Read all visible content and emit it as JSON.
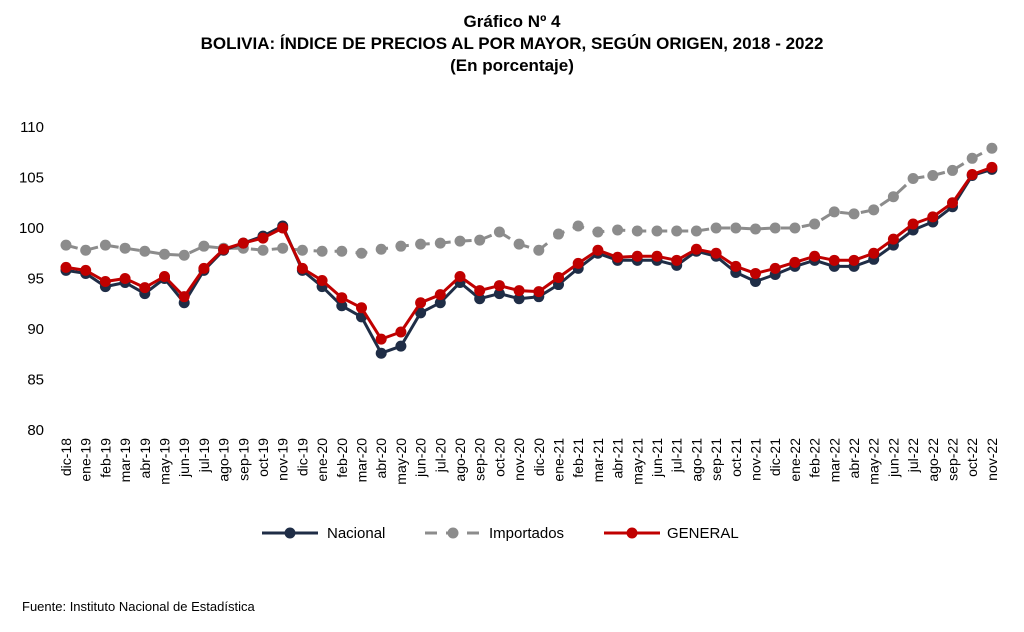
{
  "header": {
    "line1": "Gráfico Nº 4",
    "line2": "BOLIVIA: ÍNDICE DE PRECIOS AL POR MAYOR, SEGÚN ORIGEN, 2018 - 2022",
    "line3": "(En porcentaje)"
  },
  "source": "Fuente: Instituto Nacional de Estadística",
  "chart_data": {
    "type": "line",
    "ylim": [
      80,
      110
    ],
    "yticks": [
      80,
      85,
      90,
      95,
      100,
      105,
      110
    ],
    "grid": false,
    "legend_position": "bottom",
    "categories": [
      "dic-18",
      "ene-19",
      "feb-19",
      "mar-19",
      "abr-19",
      "may-19",
      "jun-19",
      "jul-19",
      "ago-19",
      "sep-19",
      "oct-19",
      "nov-19",
      "dic-19",
      "ene-20",
      "feb-20",
      "mar-20",
      "abr-20",
      "may-20",
      "jun-20",
      "jul-20",
      "ago-20",
      "sep-20",
      "oct-20",
      "nov-20",
      "dic-20",
      "ene-21",
      "feb-21",
      "mar-21",
      "abr-21",
      "may-21",
      "jun-21",
      "jul-21",
      "ago-21",
      "sep-21",
      "oct-21",
      "nov-21",
      "dic-21",
      "ene-22",
      "feb-22",
      "mar-22",
      "abr-22",
      "may-22",
      "jun-22",
      "jul-22",
      "ago-22",
      "sep-22",
      "oct-22",
      "nov-22"
    ],
    "series": [
      {
        "name": "Nacional",
        "color": "#1f2d46",
        "style": "solid",
        "values": [
          95.8,
          95.5,
          94.2,
          94.6,
          93.5,
          95.0,
          92.6,
          95.8,
          97.8,
          98.5,
          99.2,
          100.2,
          95.8,
          94.2,
          92.3,
          91.2,
          87.6,
          88.3,
          91.6,
          92.6,
          94.6,
          93.0,
          93.5,
          93.0,
          93.2,
          94.4,
          96.0,
          97.5,
          96.8,
          96.8,
          96.8,
          96.3,
          97.7,
          97.2,
          95.6,
          94.7,
          95.4,
          96.2,
          96.8,
          96.2,
          96.2,
          96.9,
          98.3,
          99.8,
          100.6,
          102.1,
          105.2,
          105.8
        ]
      },
      {
        "name": "Importados",
        "color": "#8c8c8c",
        "style": "dashed",
        "values": [
          98.3,
          97.8,
          98.3,
          98.0,
          97.7,
          97.4,
          97.3,
          98.2,
          98.0,
          98.0,
          97.8,
          98.0,
          97.8,
          97.7,
          97.7,
          97.5,
          97.9,
          98.2,
          98.4,
          98.5,
          98.7,
          98.8,
          99.6,
          98.4,
          97.8,
          99.4,
          100.2,
          99.6,
          99.8,
          99.7,
          99.7,
          99.7,
          99.7,
          100.0,
          100.0,
          99.9,
          100.0,
          100.0,
          100.4,
          101.6,
          101.4,
          101.8,
          103.1,
          104.9,
          105.2,
          105.7,
          106.9,
          107.9
        ]
      },
      {
        "name": "GENERAL",
        "color": "#c00000",
        "style": "solid",
        "values": [
          96.1,
          95.8,
          94.7,
          95.0,
          94.1,
          95.2,
          93.2,
          96.0,
          97.9,
          98.5,
          99.0,
          100.0,
          96.0,
          94.8,
          93.1,
          92.1,
          89.0,
          89.7,
          92.6,
          93.4,
          95.2,
          93.8,
          94.3,
          93.8,
          93.7,
          95.1,
          96.5,
          97.8,
          97.1,
          97.2,
          97.2,
          96.8,
          97.9,
          97.5,
          96.2,
          95.5,
          96.0,
          96.6,
          97.2,
          96.8,
          96.8,
          97.5,
          98.9,
          100.4,
          101.1,
          102.5,
          105.3,
          106.0
        ]
      }
    ]
  }
}
